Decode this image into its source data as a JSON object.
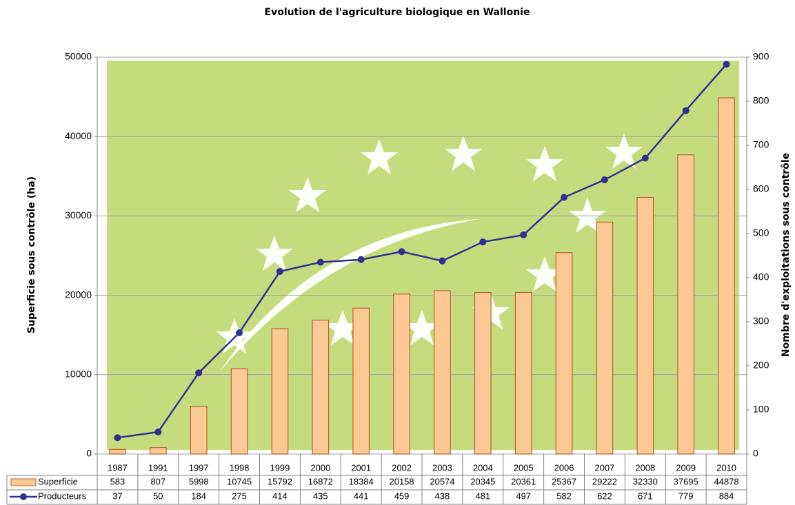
{
  "chart_data": {
    "type": "bar",
    "title": "Evolution de l'agriculture biologique en  Wallonie",
    "y_label": "Superficie sous contrôle (ha)",
    "y2_label": "Nombre d'exploitations sous contrôle",
    "categories": [
      "1987",
      "1991",
      "1997",
      "1998",
      "1999",
      "2000",
      "2001",
      "2002",
      "2003",
      "2004",
      "2005",
      "2006",
      "2007",
      "2008",
      "2009",
      "2010"
    ],
    "series": [
      {
        "name": "Superficie",
        "type": "bar",
        "color": "#fcc995",
        "values": [
          583,
          807,
          5998,
          10745,
          15792,
          16872,
          18384,
          20158,
          20574,
          20345,
          20361,
          25367,
          29222,
          32330,
          37695,
          44878
        ]
      },
      {
        "name": "Producteurs",
        "type": "line",
        "axis": "y2",
        "color": "#2e3192",
        "values": [
          37,
          50,
          184,
          275,
          414,
          435,
          441,
          459,
          438,
          481,
          497,
          582,
          622,
          671,
          779,
          884
        ]
      }
    ],
    "ylim": [
      0,
      50000
    ],
    "yticks": [
      0,
      10000,
      20000,
      30000,
      40000,
      50000
    ],
    "y2lim": [
      0,
      900
    ],
    "y2ticks": [
      0,
      100,
      200,
      300,
      400,
      500,
      600,
      700,
      800,
      900
    ],
    "grid": true
  }
}
